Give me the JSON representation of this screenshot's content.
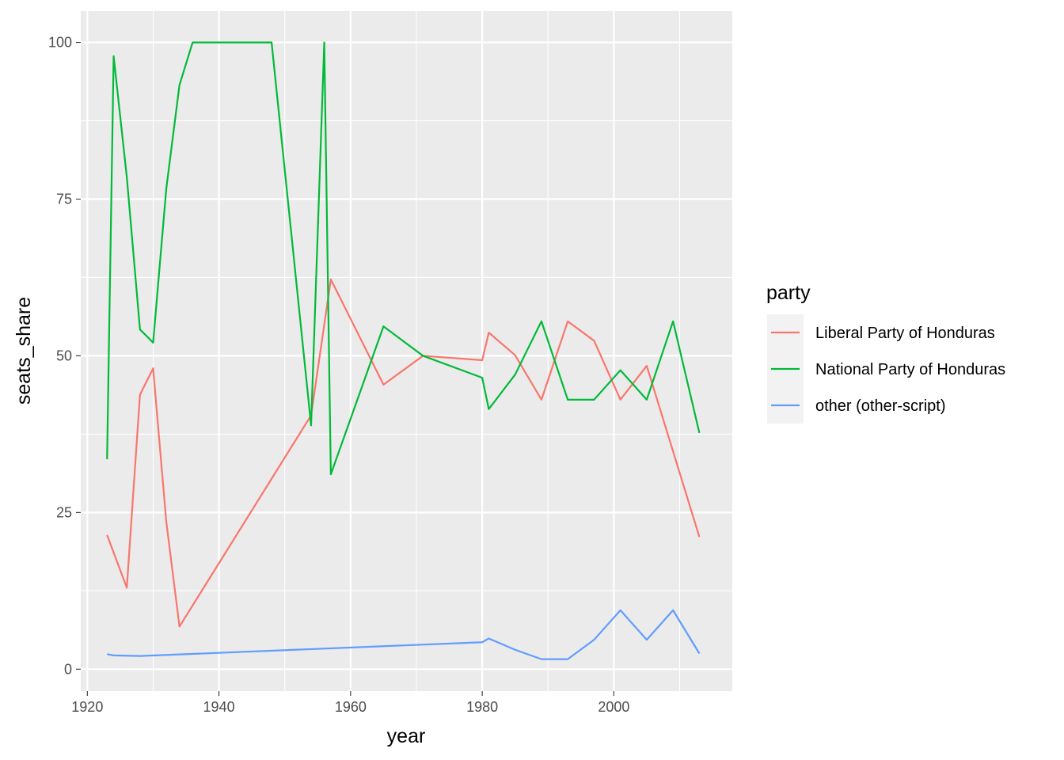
{
  "chart_data": {
    "type": "line",
    "xlabel": "year",
    "ylabel": "seats_share",
    "xlim": [
      1919,
      2018
    ],
    "ylim": [
      -3.5,
      105
    ],
    "x_ticks": [
      1920,
      1940,
      1960,
      1980,
      2000
    ],
    "x_tick_labels": [
      "1920",
      "1940",
      "1960",
      "1980",
      "2000"
    ],
    "y_ticks": [
      0,
      25,
      50,
      75,
      100
    ],
    "y_tick_labels": [
      "0",
      "25",
      "50",
      "75",
      "100"
    ],
    "grid": true,
    "legend": {
      "title": "party",
      "position": "right"
    },
    "series": [
      {
        "name": "Liberal Party of Honduras",
        "color": "#F8766D",
        "x": [
          1923,
          1926,
          1928,
          1930,
          1932,
          1934,
          1954,
          1957,
          1965,
          1971,
          1980,
          1981,
          1985,
          1989,
          1993,
          1997,
          2001,
          2005,
          2013
        ],
        "y": [
          21.4,
          13,
          43.8,
          48,
          23.5,
          6.8,
          40.5,
          62.2,
          45.4,
          50,
          49.3,
          53.7,
          50.1,
          43,
          55.5,
          52.4,
          43,
          48.4,
          21.1
        ]
      },
      {
        "name": "National Party of Honduras",
        "color": "#00BA38",
        "x": [
          1923,
          1924,
          1926,
          1928,
          1930,
          1932,
          1934,
          1936,
          1948,
          1954,
          1956,
          1957,
          1965,
          1971,
          1980,
          1981,
          1985,
          1989,
          1993,
          1997,
          2001,
          2005,
          2009,
          2013
        ],
        "y": [
          33.5,
          97.8,
          78.5,
          54.2,
          52.1,
          76.7,
          93.2,
          100,
          100,
          38.9,
          100,
          31.1,
          54.7,
          50,
          46.5,
          41.5,
          47,
          55.5,
          43,
          43,
          47.7,
          43,
          55.5,
          37.7
        ]
      },
      {
        "name": "other (other-script)",
        "color": "#619CFF",
        "x": [
          1923,
          1924,
          1928,
          1980,
          1981,
          1985,
          1989,
          1993,
          1997,
          2001,
          2005,
          2009,
          2013
        ],
        "y": [
          2.4,
          2.2,
          2.1,
          4.3,
          4.9,
          3.1,
          1.6,
          1.6,
          4.7,
          9.4,
          4.7,
          9.4,
          2.5
        ]
      }
    ]
  }
}
